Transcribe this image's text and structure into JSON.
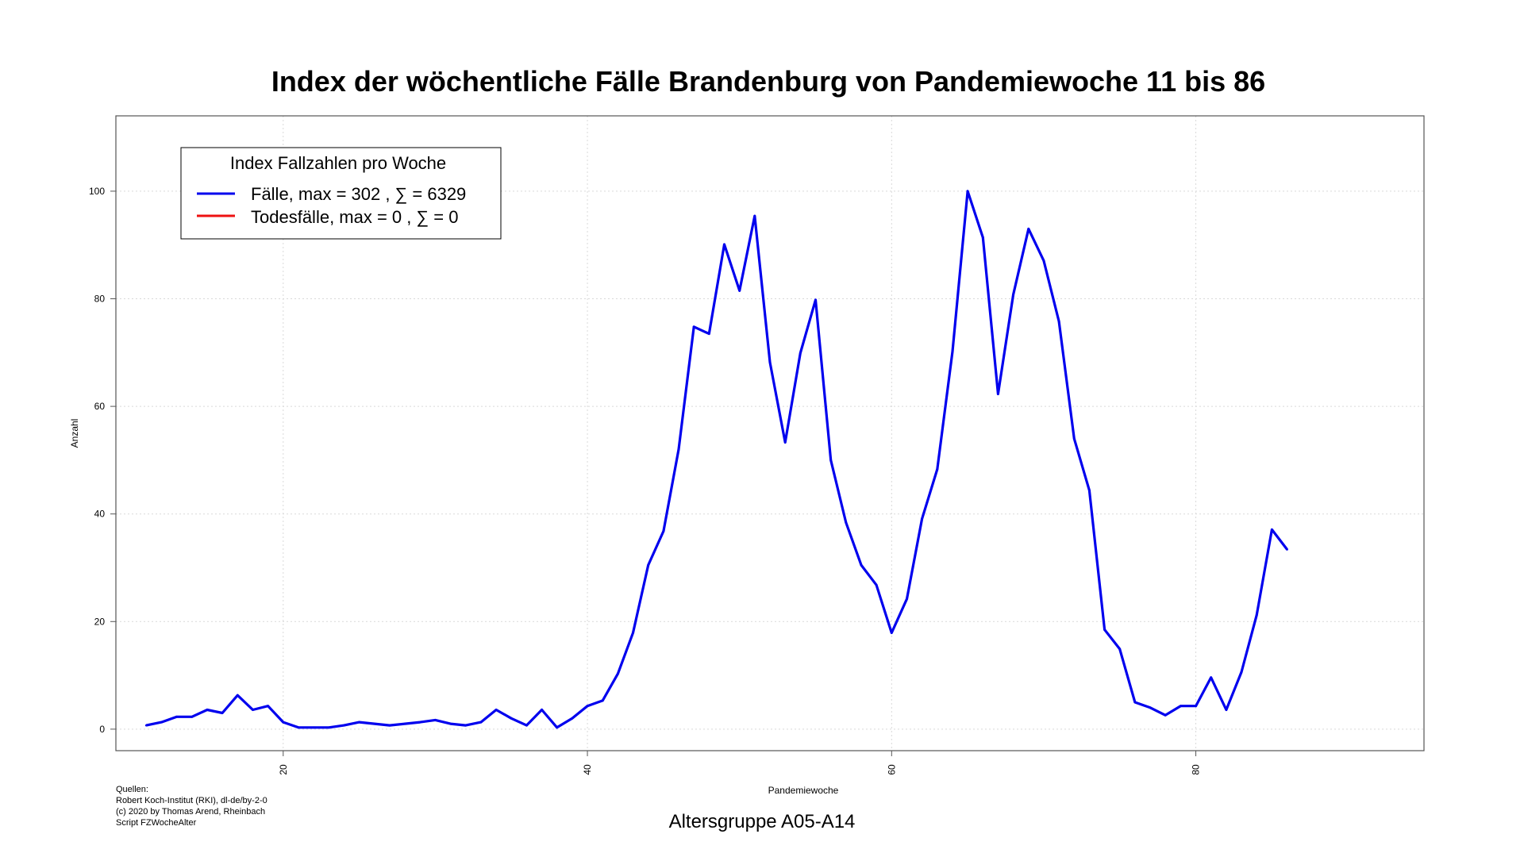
{
  "chart_data": {
    "type": "line",
    "title": "Index der wöchentliche Fälle Brandenburg von Pandemiewoche 11 bis 86",
    "subtitle": "Altersgruppe A05-A14",
    "xlabel": "Pandemiewoche",
    "ylabel": "Anzahl",
    "xlim": [
      9,
      95
    ],
    "ylim": [
      -4,
      114
    ],
    "x_ticks": [
      20,
      40,
      60,
      80
    ],
    "y_ticks": [
      0,
      20,
      40,
      60,
      80,
      100
    ],
    "grid": true,
    "legend": {
      "title": "Index Fallzahlen pro Woche",
      "placement": "top-left",
      "entries": [
        {
          "label": "Fälle, max = 302 ,  ∑  = 6329",
          "color": "#0000ee"
        },
        {
          "label": "Todesfälle, max = 0 ,  ∑  = 0",
          "color": "#ee1111"
        }
      ]
    },
    "series": [
      {
        "name": "Fälle",
        "color": "#0000ee",
        "x": [
          11,
          12,
          13,
          14,
          15,
          16,
          17,
          18,
          19,
          20,
          21,
          22,
          23,
          24,
          25,
          26,
          27,
          28,
          29,
          30,
          31,
          32,
          33,
          34,
          35,
          36,
          37,
          38,
          39,
          40,
          41,
          42,
          43,
          44,
          45,
          46,
          47,
          48,
          49,
          50,
          51,
          52,
          53,
          54,
          55,
          56,
          57,
          58,
          59,
          60,
          61,
          62,
          63,
          64,
          65,
          66,
          67,
          68,
          69,
          70,
          71,
          72,
          73,
          74,
          75,
          76,
          77,
          78,
          79,
          80,
          81,
          82,
          83,
          84,
          85,
          86
        ],
        "values": [
          0.7,
          1.3,
          2.3,
          2.3,
          3.6,
          3.0,
          6.3,
          3.6,
          4.3,
          1.3,
          0.3,
          0.3,
          0.3,
          0.7,
          1.3,
          1.0,
          0.7,
          1.0,
          1.3,
          1.7,
          1.0,
          0.7,
          1.3,
          3.6,
          2.0,
          0.7,
          3.6,
          0.3,
          2.0,
          4.3,
          5.3,
          10.3,
          17.9,
          30.5,
          36.8,
          52.0,
          74.8,
          73.5,
          90.1,
          81.5,
          95.4,
          68.2,
          53.3,
          69.9,
          79.8,
          50.0,
          38.4,
          30.5,
          26.8,
          17.9,
          24.2,
          39.1,
          48.3,
          70.2,
          100.0,
          91.4,
          62.3,
          80.8,
          93.0,
          87.1,
          75.8,
          54.0,
          44.4,
          18.5,
          14.9,
          5.0,
          4.0,
          2.6,
          4.3,
          4.3,
          9.6,
          3.6,
          10.6,
          21.2,
          37.1,
          33.4
        ]
      },
      {
        "name": "Todesfälle",
        "color": "#ee1111",
        "x": [],
        "values": []
      }
    ]
  },
  "footer": {
    "line1": "Quellen:",
    "line2": "Robert Koch-Institut (RKI), dl-de/by-2-0",
    "line3": "(c) 2020 by Thomas Arend, Rheinbach",
    "line4": "Script FZWocheAlter"
  }
}
